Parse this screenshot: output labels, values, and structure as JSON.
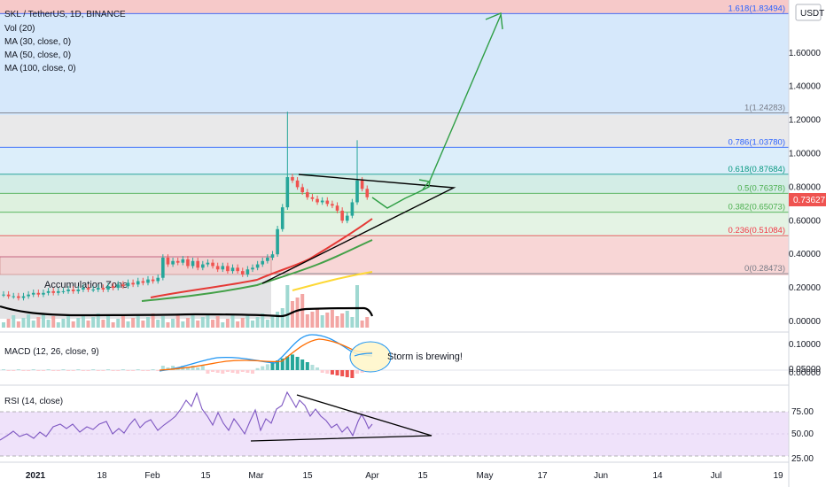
{
  "header": {
    "title": "SKL / TetherUS, 1D, BINANCE",
    "indicators": [
      "Vol (20)",
      "MA (30, close, 0)",
      "MA (50, close, 0)",
      "MA (100, close, 0)"
    ],
    "currency": "USDT"
  },
  "current_price": "0.73627",
  "price_axis": [
    "1.60000",
    "1.40000",
    "1.20000",
    "1.00000",
    "0.80000",
    "0.60000",
    "0.40000",
    "0.20000",
    "0.00000"
  ],
  "fib_levels": [
    {
      "label": "1.618(1.83494)",
      "value": 1.83494,
      "color": "#2962ff"
    },
    {
      "label": "1(1.24283)",
      "value": 1.24283,
      "color": "#787b86"
    },
    {
      "label": "0.786(1.03780)",
      "value": 1.0378,
      "color": "#2962ff"
    },
    {
      "label": "0.618(0.87684)",
      "value": 0.87684,
      "color": "#089981"
    },
    {
      "label": "0.5(0.76378)",
      "value": 0.76378,
      "color": "#4caf50"
    },
    {
      "label": "0.382(0.65073)",
      "value": 0.65073,
      "color": "#4caf50"
    },
    {
      "label": "0.236(0.51084)",
      "value": 0.51084,
      "color": "#f23645"
    },
    {
      "label": "0(0.28473)",
      "value": 0.28473,
      "color": "#787b86"
    }
  ],
  "annotations": {
    "accumulation": "Accumulation Zone",
    "storm": "Storm is brewing!"
  },
  "macd_panel": {
    "label": "MACD (12, 26, close, 9)",
    "axis": [
      "0.10000",
      "0.05000",
      "0.00000"
    ]
  },
  "rsi_panel": {
    "label": "RSI (14, close)",
    "axis": [
      "75.00",
      "50.00",
      "25.00"
    ]
  },
  "time_axis": [
    "2021",
    "18",
    "Feb",
    "15",
    "Mar",
    "15",
    "Apr",
    "15",
    "May",
    "17",
    "Jun",
    "14",
    "Jul",
    "19"
  ],
  "colors": {
    "up": "#26a69a",
    "down": "#ef5350",
    "ma30": "#e53935",
    "ma50": "#43a047",
    "ma100": "#fdd835",
    "projection": "#2e9e44",
    "macd": "#2196f3",
    "signal": "#ff6d00",
    "rsi": "#7e57c2"
  },
  "chart_data": {
    "type": "candlestick",
    "x_labels": [
      "2021",
      "18",
      "Feb",
      "15",
      "Mar",
      "15",
      "Apr",
      "15",
      "May",
      "17",
      "Jun",
      "14",
      "Jul",
      "19"
    ],
    "ylim": [
      0.0,
      1.85
    ],
    "close": [
      0.16,
      0.15,
      0.15,
      0.14,
      0.15,
      0.16,
      0.17,
      0.16,
      0.17,
      0.18,
      0.17,
      0.18,
      0.18,
      0.19,
      0.18,
      0.19,
      0.2,
      0.19,
      0.19,
      0.2,
      0.19,
      0.21,
      0.2,
      0.22,
      0.21,
      0.23,
      0.22,
      0.24,
      0.23,
      0.25,
      0.24,
      0.26,
      0.38,
      0.34,
      0.36,
      0.35,
      0.37,
      0.33,
      0.36,
      0.32,
      0.34,
      0.35,
      0.33,
      0.31,
      0.33,
      0.3,
      0.32,
      0.3,
      0.28,
      0.31,
      0.32,
      0.34,
      0.36,
      0.38,
      0.4,
      0.55,
      0.68,
      0.86,
      0.84,
      0.8,
      0.77,
      0.74,
      0.73,
      0.71,
      0.72,
      0.7,
      0.69,
      0.66,
      0.6,
      0.63,
      0.71,
      0.84,
      0.79,
      0.74
    ],
    "ma30": [
      0.28,
      0.35,
      0.44,
      0.52,
      0.58,
      0.61,
      0.63
    ],
    "ma50": [
      0.22,
      0.28,
      0.35,
      0.41,
      0.46,
      0.49
    ],
    "ma100": [
      0.2,
      0.24,
      0.27,
      0.3
    ],
    "projection": [
      0.73,
      0.7,
      0.79,
      0.76,
      0.84,
      1.3,
      1.84
    ]
  }
}
